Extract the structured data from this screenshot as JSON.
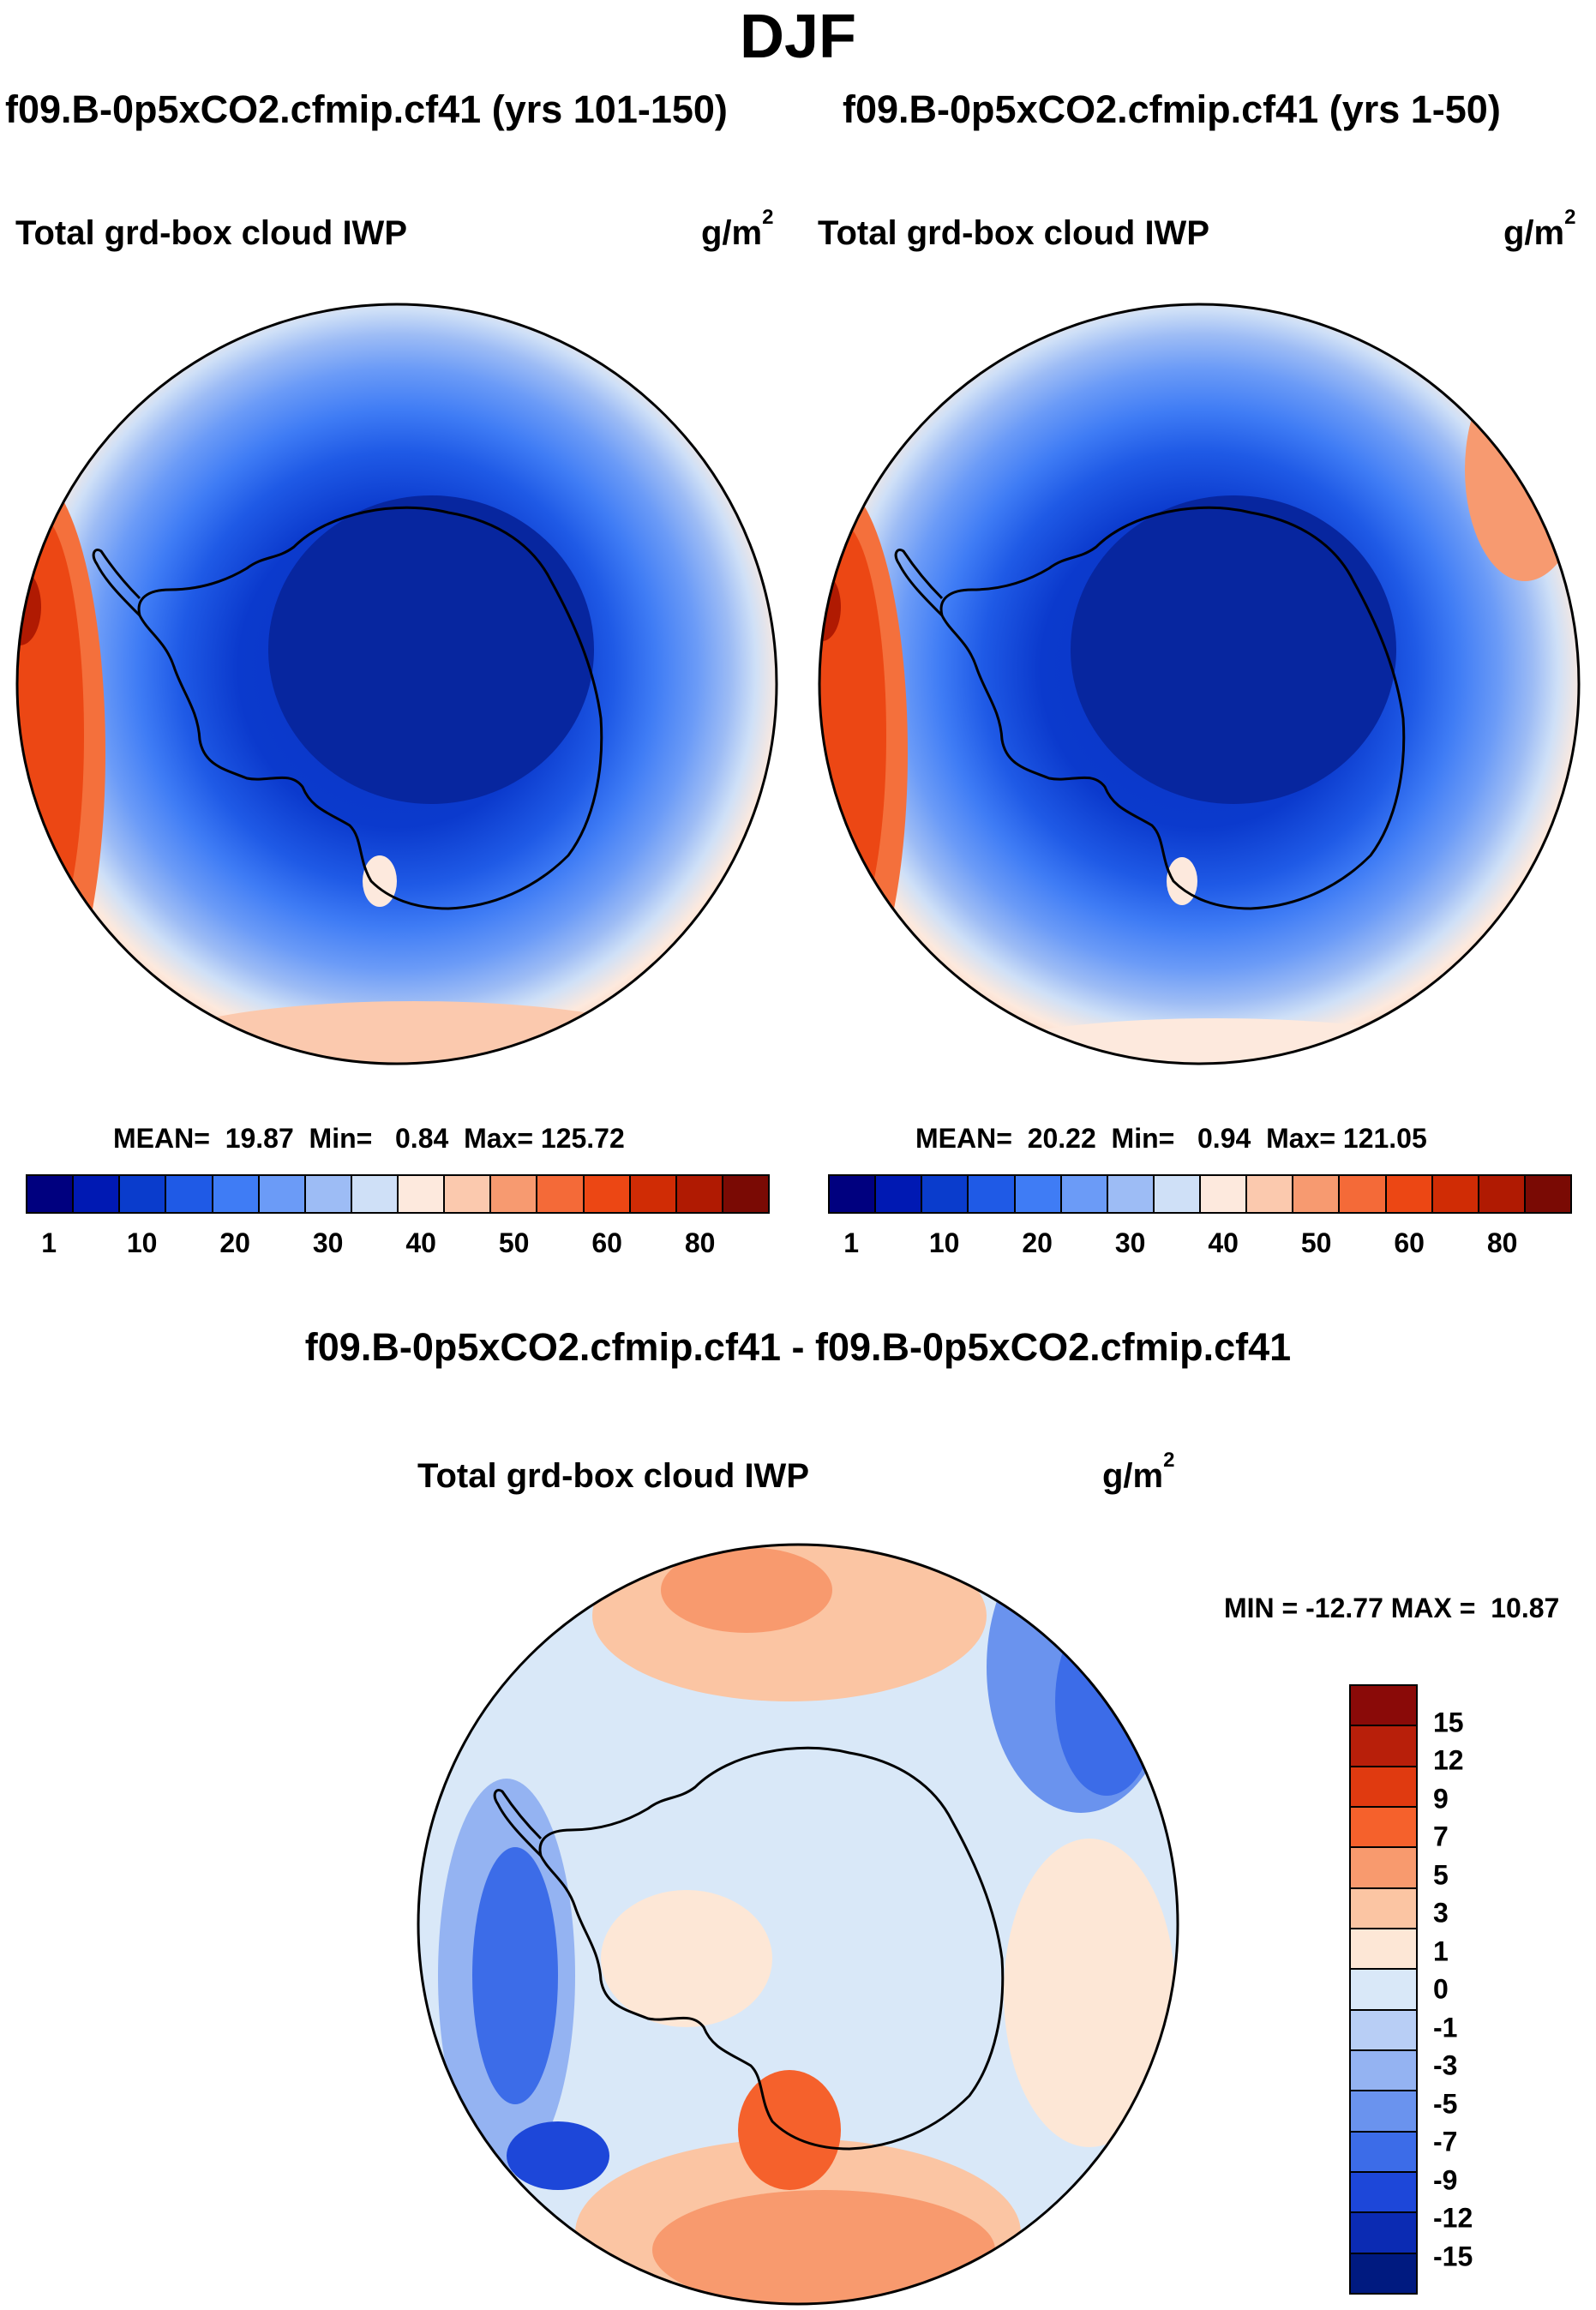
{
  "figure_title": "DJF",
  "panels": [
    {
      "case_label": "f09.B-0p5xCO2.cfmip.cf41 (yrs 101-150)",
      "variable": "Total grd-box cloud IWP",
      "units_base": "g/m",
      "units_exp": "2",
      "stats": {
        "mean": "MEAN=  19.87",
        "min": "Min=   0.84",
        "max": "Max= 125.72"
      }
    },
    {
      "case_label": "f09.B-0p5xCO2.cfmip.cf41 (yrs 1-50)",
      "variable": "Total grd-box cloud IWP",
      "units_base": "g/m",
      "units_exp": "2",
      "stats": {
        "mean": "MEAN=  20.22",
        "min": "Min=   0.94",
        "max": "Max= 121.05"
      }
    }
  ],
  "field_colorbar": {
    "colors": [
      "#00007f",
      "#0019b3",
      "#0a3ccc",
      "#1f5ae6",
      "#3f7cf5",
      "#6b9bf7",
      "#9dbcf5",
      "#cfe0f7",
      "#fde9dd",
      "#fbc9ae",
      "#f79a70",
      "#f46a38",
      "#ec4714",
      "#d02c05",
      "#b01a02",
      "#7a0a04"
    ],
    "tick_labels": [
      "1",
      "10",
      "20",
      "30",
      "40",
      "50",
      "60",
      "80"
    ]
  },
  "difference": {
    "title": "f09.B-0p5xCO2.cfmip.cf41 - f09.B-0p5xCO2.cfmip.cf41",
    "variable": "Total grd-box cloud IWP",
    "units_base": "g/m",
    "units_exp": "2",
    "minmax": "MIN = -12.77 MAX =  10.87",
    "colorbar": {
      "colors_top_to_bottom": [
        "#8a0a08",
        "#b81f0a",
        "#e03a10",
        "#f5612c",
        "#f89a6e",
        "#fbc5a3",
        "#fde7d6",
        "#d9e8f8",
        "#b8cef5",
        "#94b3f2",
        "#6a93ee",
        "#3c6ce8",
        "#1d47d9",
        "#0b2bb3",
        "#001a80"
      ],
      "tick_labels_top_to_bottom": [
        "15",
        "12",
        "9",
        "7",
        "5",
        "3",
        "1",
        "0",
        "-1",
        "-3",
        "-5",
        "-7",
        "-9",
        "-12",
        "-15"
      ]
    }
  }
}
